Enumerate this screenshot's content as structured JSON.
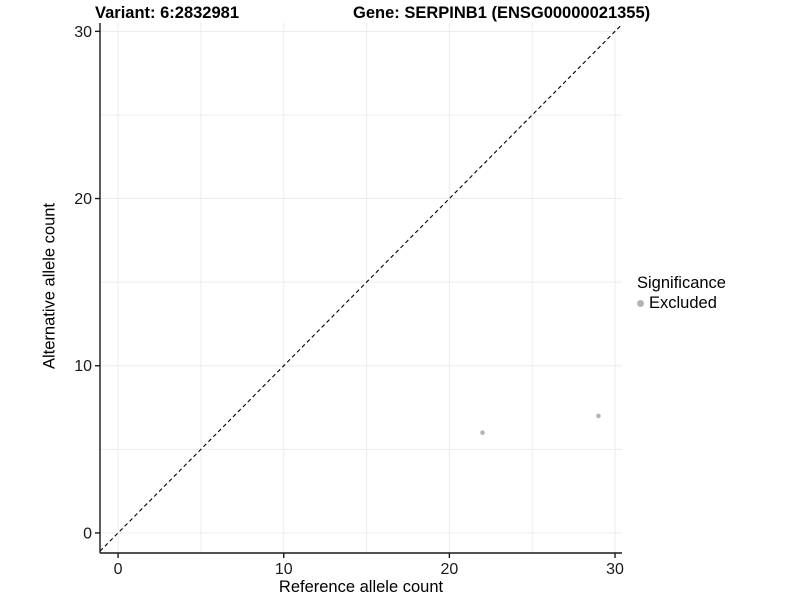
{
  "header": {
    "variant_title": "Variant: 6:2832981",
    "gene_title": "Gene: SERPINB1 (ENSG00000021355)"
  },
  "chart_data": {
    "type": "scatter",
    "xlabel": "Reference allele count",
    "ylabel": "Alternative allele count",
    "xlim": [
      -1.09,
      30.42
    ],
    "ylim": [
      -1.2,
      30.5
    ],
    "xticks": [
      0,
      10,
      20,
      30
    ],
    "yticks": [
      0,
      10,
      20,
      30
    ],
    "grid": {
      "values": [
        0,
        5,
        10,
        15,
        20,
        25,
        30
      ],
      "color": "#ececec",
      "on": true
    },
    "identity_line": {
      "equation": "y = x",
      "style": "dashed",
      "color": "#000000"
    },
    "series": [
      {
        "name": "Excluded",
        "color": "#b4b4b4",
        "points": [
          [
            22,
            6
          ],
          [
            29,
            7
          ]
        ]
      }
    ],
    "legend": {
      "title": "Significance",
      "position": "right",
      "entries": [
        {
          "label": "Excluded",
          "color": "#b4b4b4"
        }
      ]
    }
  },
  "colors": {
    "background": "#ffffff",
    "axis": "#1a1a1a",
    "tick_label": "#1a1a1a",
    "grid": "#ececec",
    "point": "#b4b4b4"
  }
}
